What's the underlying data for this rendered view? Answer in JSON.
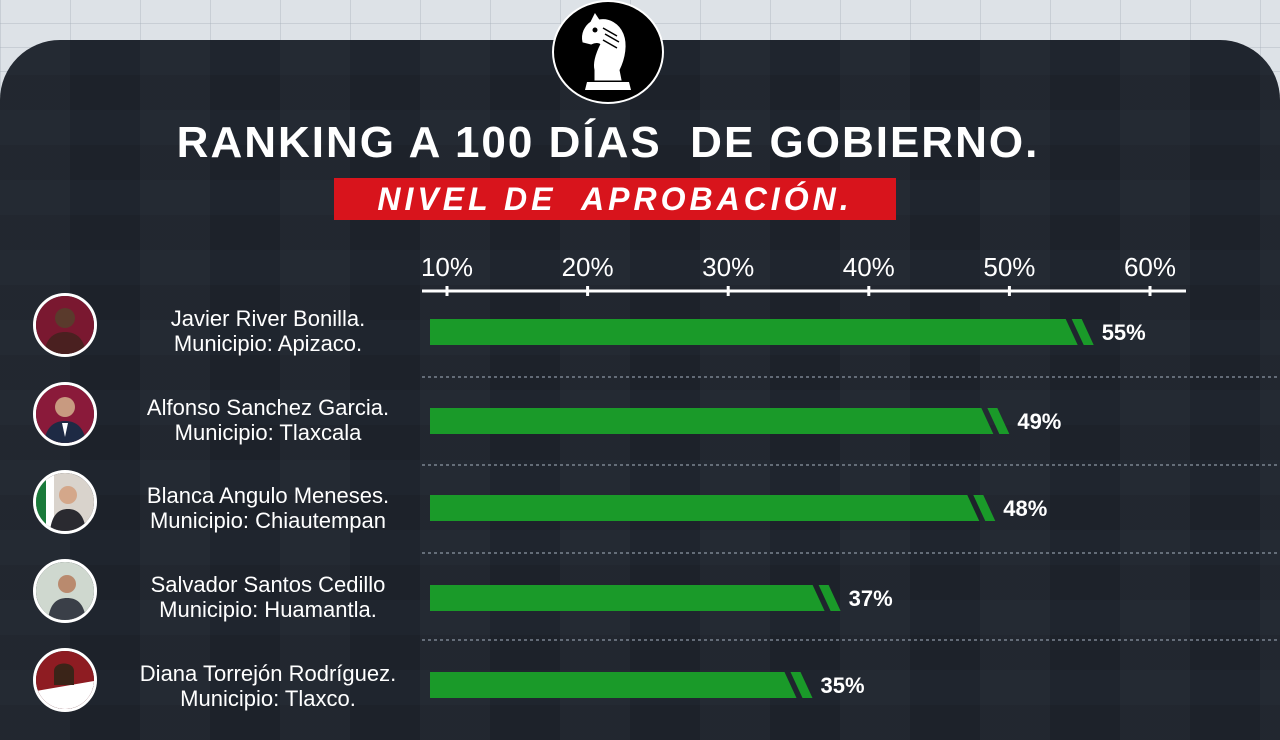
{
  "header": {
    "title": "RANKING A 100 DÍAS  DE GOBIERNO.",
    "subtitle": "NIVEL DE  APROBACIÓN.",
    "logo": "chess-knight-logo"
  },
  "colors": {
    "background": "#1f252e",
    "bar": "#1a9a29",
    "accent": "#d8141c",
    "text": "#ffffff"
  },
  "chart_data": {
    "type": "bar",
    "orientation": "horizontal",
    "axis_ticks": [
      "10%",
      "20%",
      "30%",
      "40%",
      "50%",
      "60%"
    ],
    "tick_values": [
      10,
      20,
      30,
      40,
      50,
      60
    ],
    "xlim": [
      10,
      60
    ],
    "axis_position": "top",
    "categories": [
      "Javier River Bonilla.",
      "Alfonso Sanchez Garcia.",
      "Blanca Angulo Meneses.",
      "Salvador Santos Cedillo",
      "Diana Torrejón Rodríguez."
    ],
    "values": [
      55,
      49,
      48,
      37,
      35
    ],
    "value_labels": [
      "55%",
      "49%",
      "48%",
      "37%",
      "35%"
    ]
  },
  "rows": [
    {
      "name": "Javier River Bonilla.",
      "municipio": "Municipio: Apizaco.",
      "avatar": "person-avatar",
      "avatar_bg": "#7a1830"
    },
    {
      "name": "Alfonso Sanchez Garcia.",
      "municipio": "Municipio: Tlaxcala",
      "avatar": "person-avatar",
      "avatar_bg": "#8a1a3a"
    },
    {
      "name": "Blanca Angulo Meneses.",
      "municipio": "Municipio: Chiautempan",
      "avatar": "person-avatar",
      "avatar_bg": "#d9d3cc"
    },
    {
      "name": "Salvador Santos Cedillo",
      "municipio": "Municipio: Huamantla.",
      "avatar": "person-avatar",
      "avatar_bg": "#cfd8cf"
    },
    {
      "name": "Diana Torrejón Rodríguez.",
      "municipio": "Municipio: Tlaxco.",
      "avatar": "person-avatar",
      "avatar_bg": "#8e1c22"
    }
  ]
}
